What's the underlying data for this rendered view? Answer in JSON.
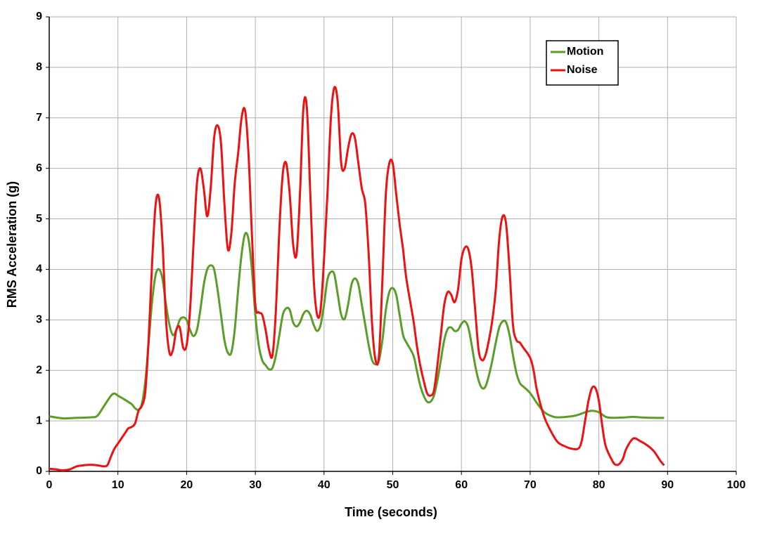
{
  "chart_data": {
    "type": "line",
    "xlabel": "Time (seconds)",
    "ylabel": "RMS Acceleration (g)",
    "xlim": [
      0,
      100
    ],
    "xticks": [
      0,
      10,
      20,
      30,
      40,
      50,
      60,
      70,
      80,
      90,
      100
    ],
    "ylim": [
      0,
      9
    ],
    "yticks": [
      0,
      1,
      2,
      3,
      4,
      5,
      6,
      7,
      8,
      9
    ],
    "grid": true,
    "legend": "upper right",
    "series": [
      {
        "name": "Motion",
        "color": "#5a9e28",
        "x": [
          0,
          2,
          4,
          6,
          7,
          8,
          9,
          9.5,
          10,
          11,
          12,
          12.5,
          13,
          13.5,
          14,
          14.5,
          15,
          15.5,
          16,
          16.5,
          17,
          17.5,
          18,
          18.5,
          19,
          19.5,
          20,
          20.5,
          21,
          21.5,
          22,
          22.5,
          23,
          23.5,
          24,
          24.5,
          25,
          25.5,
          26,
          26.5,
          27,
          27.5,
          28,
          28.5,
          29,
          29.5,
          30,
          30.5,
          31,
          31.5,
          32,
          32.5,
          33,
          33.5,
          34,
          34.5,
          35,
          35.5,
          36,
          36.5,
          37,
          37.5,
          38,
          38.5,
          39,
          39.5,
          40,
          40.5,
          41,
          41.5,
          42,
          42.5,
          43,
          43.5,
          44,
          44.5,
          45,
          45.5,
          46,
          46.5,
          47,
          47.5,
          48,
          48.5,
          49,
          49.5,
          50,
          50.5,
          51,
          51.5,
          52,
          53,
          53.5,
          54,
          54.5,
          55,
          55.5,
          56,
          56.5,
          57,
          57.5,
          58,
          58.5,
          59,
          59.5,
          60,
          60.5,
          61,
          61.5,
          62,
          62.5,
          63,
          63.5,
          64,
          64.5,
          65,
          65.5,
          66,
          66.5,
          67,
          67.5,
          68,
          68.5,
          69,
          70,
          71,
          72,
          73,
          74,
          76,
          77,
          78,
          79,
          80,
          81,
          82,
          84,
          85,
          86,
          88,
          89.5
        ],
        "values": [
          1.09,
          1.05,
          1.06,
          1.07,
          1.1,
          1.3,
          1.5,
          1.54,
          1.5,
          1.42,
          1.33,
          1.25,
          1.22,
          1.35,
          1.8,
          2.6,
          3.4,
          3.9,
          4.0,
          3.8,
          3.3,
          2.9,
          2.7,
          2.8,
          3.0,
          3.05,
          3.0,
          2.8,
          2.68,
          2.8,
          3.2,
          3.7,
          4.0,
          4.08,
          4.0,
          3.6,
          3.1,
          2.6,
          2.35,
          2.35,
          2.8,
          3.6,
          4.3,
          4.7,
          4.6,
          4.0,
          3.1,
          2.5,
          2.2,
          2.1,
          2.02,
          2.05,
          2.3,
          2.7,
          3.1,
          3.23,
          3.2,
          2.95,
          2.87,
          2.95,
          3.12,
          3.18,
          3.1,
          2.9,
          2.78,
          2.9,
          3.3,
          3.8,
          3.95,
          3.9,
          3.5,
          3.1,
          3.02,
          3.3,
          3.7,
          3.82,
          3.7,
          3.3,
          2.9,
          2.5,
          2.2,
          2.12,
          2.2,
          2.6,
          3.2,
          3.55,
          3.63,
          3.5,
          3.1,
          2.7,
          2.55,
          2.3,
          2.0,
          1.7,
          1.5,
          1.38,
          1.38,
          1.5,
          1.8,
          2.2,
          2.6,
          2.82,
          2.85,
          2.78,
          2.8,
          2.92,
          2.97,
          2.85,
          2.5,
          2.1,
          1.8,
          1.65,
          1.68,
          1.9,
          2.2,
          2.55,
          2.85,
          2.97,
          2.95,
          2.7,
          2.3,
          1.95,
          1.75,
          1.68,
          1.55,
          1.35,
          1.18,
          1.1,
          1.07,
          1.09,
          1.12,
          1.17,
          1.2,
          1.17,
          1.08,
          1.06,
          1.07,
          1.08,
          1.07,
          1.06,
          1.06
        ]
      },
      {
        "name": "Noise",
        "color": "#ee1111",
        "x": [
          0,
          1,
          2,
          3,
          4,
          5,
          6,
          7,
          8,
          8.5,
          9,
          9.5,
          10,
          11,
          11.5,
          12,
          12.5,
          13,
          13.5,
          14,
          14.5,
          15,
          15.5,
          16,
          16.5,
          17,
          17.5,
          18,
          18.5,
          19,
          19.5,
          20,
          20.5,
          21,
          21.5,
          22,
          22.5,
          23,
          23.5,
          24,
          24.5,
          25,
          25.5,
          26,
          26.5,
          27,
          27.5,
          28,
          28.5,
          29,
          29.5,
          30,
          30.5,
          31,
          31.5,
          32,
          32.5,
          33,
          33.5,
          34,
          34.5,
          35,
          35.5,
          36,
          36.5,
          37,
          37.5,
          38,
          38.5,
          39,
          39.5,
          40,
          40.5,
          41,
          41.5,
          42,
          42.5,
          43,
          43.5,
          44,
          44.5,
          45,
          45.5,
          46,
          46.5,
          47,
          47.5,
          48,
          48.5,
          49,
          49.5,
          50,
          50.5,
          51,
          51.5,
          52,
          53,
          53.5,
          54,
          54.5,
          55,
          55.5,
          56,
          56.5,
          57,
          57.5,
          58,
          58.5,
          59,
          59.5,
          60,
          60.5,
          61,
          61.5,
          62,
          62.5,
          63,
          63.5,
          64,
          64.5,
          65,
          65.5,
          66,
          66.5,
          67,
          67.5,
          68,
          68.5,
          69,
          70,
          70.5,
          71,
          72,
          73,
          74,
          75,
          76,
          77,
          77.5,
          78,
          78.5,
          79,
          79.5,
          80,
          80.5,
          81,
          82,
          82.5,
          83,
          83.5,
          84,
          85,
          86,
          87,
          88,
          89,
          89.5
        ],
        "values": [
          0.05,
          0.04,
          0.02,
          0.04,
          0.1,
          0.12,
          0.13,
          0.12,
          0.1,
          0.13,
          0.3,
          0.45,
          0.55,
          0.75,
          0.85,
          0.88,
          0.95,
          1.2,
          1.3,
          1.6,
          2.7,
          4.2,
          5.3,
          5.4,
          4.5,
          3.0,
          2.35,
          2.4,
          2.8,
          2.85,
          2.45,
          2.5,
          3.2,
          4.5,
          5.7,
          6.0,
          5.6,
          5.05,
          5.6,
          6.6,
          6.85,
          6.5,
          5.3,
          4.4,
          4.7,
          5.7,
          6.3,
          7.0,
          7.15,
          6.3,
          4.7,
          3.3,
          3.15,
          3.1,
          2.8,
          2.4,
          2.3,
          3.2,
          4.8,
          5.9,
          6.1,
          5.5,
          4.5,
          4.3,
          5.5,
          7.2,
          7.2,
          5.5,
          3.8,
          3.1,
          3.2,
          4.2,
          5.5,
          7.0,
          7.6,
          7.3,
          6.1,
          6.0,
          6.4,
          6.68,
          6.6,
          6.1,
          5.6,
          5.3,
          4.3,
          2.9,
          2.2,
          2.3,
          3.8,
          5.5,
          6.1,
          6.1,
          5.5,
          4.9,
          4.4,
          3.8,
          3.0,
          2.5,
          2.1,
          1.8,
          1.55,
          1.5,
          1.6,
          2.1,
          2.7,
          3.3,
          3.55,
          3.5,
          3.35,
          3.6,
          4.2,
          4.43,
          4.4,
          4.0,
          3.2,
          2.4,
          2.2,
          2.3,
          2.6,
          3.0,
          3.6,
          4.6,
          5.05,
          4.9,
          4.0,
          2.9,
          2.6,
          2.55,
          2.45,
          2.25,
          2.0,
          1.6,
          1.1,
          0.8,
          0.58,
          0.5,
          0.45,
          0.45,
          0.6,
          1.0,
          1.4,
          1.65,
          1.65,
          1.4,
          0.9,
          0.5,
          0.2,
          0.13,
          0.15,
          0.25,
          0.45,
          0.65,
          0.6,
          0.52,
          0.4,
          0.2,
          0.12
        ]
      }
    ]
  }
}
